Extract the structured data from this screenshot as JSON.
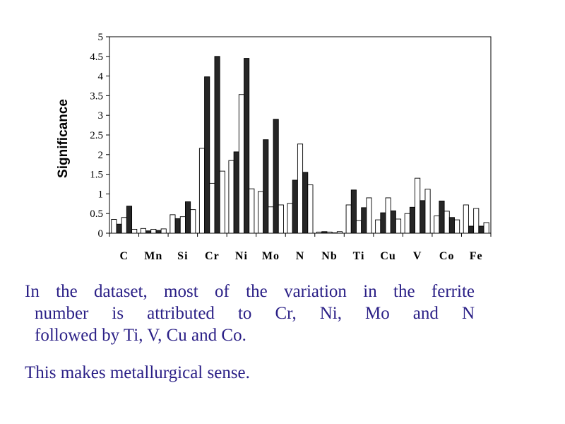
{
  "chart_data": {
    "type": "bar",
    "ylabel": "Significance",
    "xlabel": "",
    "ylim": [
      0,
      5
    ],
    "yticks": [
      "0",
      "0.5",
      "1",
      "1.5",
      "2",
      "2.5",
      "3",
      "3.5",
      "4",
      "4.5",
      "5"
    ],
    "grid": false,
    "legend": "none",
    "categories": [
      "C",
      "Mn",
      "Si",
      "Cr",
      "Ni",
      "Mo",
      "N",
      "Nb",
      "Ti",
      "Cu",
      "V",
      "Co",
      "Fe"
    ],
    "series": [
      {
        "fill": "#ffffff",
        "values": [
          0.35,
          0.12,
          0.47,
          2.16,
          1.85,
          1.06,
          0.76,
          0.03,
          0.72,
          0.34,
          0.5,
          0.44,
          0.72
        ]
      },
      {
        "fill": "#262626",
        "values": [
          0.23,
          0.06,
          0.37,
          3.98,
          2.07,
          2.38,
          1.35,
          0.04,
          1.1,
          0.52,
          0.66,
          0.82,
          0.18
        ]
      },
      {
        "fill": "#ffffff",
        "values": [
          0.4,
          0.1,
          0.42,
          1.27,
          3.53,
          0.67,
          2.27,
          0.03,
          0.32,
          0.9,
          1.4,
          0.56,
          0.63
        ]
      },
      {
        "fill": "#262626",
        "values": [
          0.69,
          0.07,
          0.8,
          4.5,
          4.45,
          2.9,
          1.55,
          0.01,
          0.65,
          0.57,
          0.83,
          0.4,
          0.18
        ]
      },
      {
        "fill": "#ffffff",
        "values": [
          0.1,
          0.11,
          0.6,
          1.58,
          1.13,
          0.72,
          1.23,
          0.04,
          0.9,
          0.36,
          1.12,
          0.34,
          0.27
        ]
      }
    ]
  },
  "caption": {
    "line1": "In the dataset, most of the variation in the ferrite",
    "line2": "number is attributed to Cr, Ni, Mo and N",
    "line3": "followed by Ti, V, Cu and Co.",
    "line4": "This  makes metallurgical sense."
  }
}
